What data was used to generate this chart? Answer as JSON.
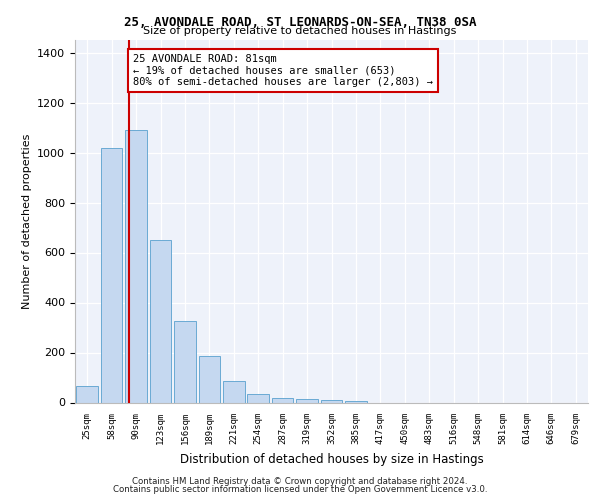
{
  "title_line1": "25, AVONDALE ROAD, ST LEONARDS-ON-SEA, TN38 0SA",
  "title_line2": "Size of property relative to detached houses in Hastings",
  "xlabel": "Distribution of detached houses by size in Hastings",
  "ylabel": "Number of detached properties",
  "categories": [
    "25sqm",
    "58sqm",
    "90sqm",
    "123sqm",
    "156sqm",
    "189sqm",
    "221sqm",
    "254sqm",
    "287sqm",
    "319sqm",
    "352sqm",
    "385sqm",
    "417sqm",
    "450sqm",
    "483sqm",
    "516sqm",
    "548sqm",
    "581sqm",
    "614sqm",
    "646sqm",
    "679sqm"
  ],
  "values": [
    65,
    1020,
    1090,
    650,
    325,
    185,
    85,
    35,
    20,
    15,
    10,
    5,
    0,
    0,
    0,
    0,
    0,
    0,
    0,
    0,
    0
  ],
  "bar_color": "#c5d8f0",
  "bar_edge_color": "#6aaad4",
  "vline_color": "#cc0000",
  "annotation_text": "25 AVONDALE ROAD: 81sqm\n← 19% of detached houses are smaller (653)\n80% of semi-detached houses are larger (2,803) →",
  "annotation_box_color": "white",
  "annotation_box_edge": "#cc0000",
  "ylim": [
    0,
    1450
  ],
  "yticks": [
    0,
    200,
    400,
    600,
    800,
    1000,
    1200,
    1400
  ],
  "bg_color": "#eef2fa",
  "grid_color": "#ffffff",
  "footer_line1": "Contains HM Land Registry data © Crown copyright and database right 2024.",
  "footer_line2": "Contains public sector information licensed under the Open Government Licence v3.0.",
  "vline_pos": 1.72
}
